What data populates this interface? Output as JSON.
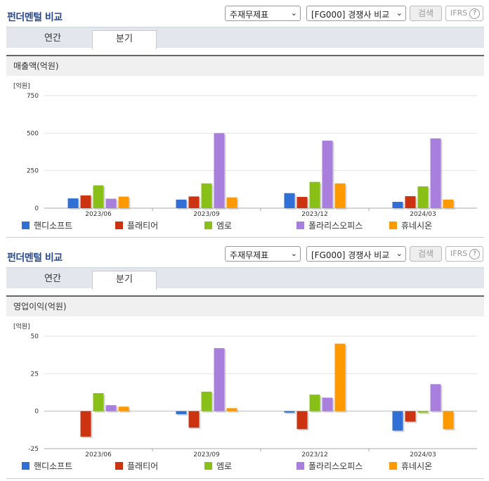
{
  "sections": [
    {
      "title": "펀더멘털 비교",
      "select1": "주재무제표",
      "select2": "[FG000] 경쟁사 비교",
      "search_label": "검색",
      "ifrs_label": "IFRS",
      "help_glyph": "?",
      "tabs": [
        {
          "label": "연간"
        },
        {
          "label": "분기"
        }
      ],
      "active_tab": "분기",
      "subtitle": "매출액(억원)"
    },
    {
      "title": "펀더멘털 비교",
      "select1": "주재무제표",
      "select2": "[FG000] 경쟁사 비교",
      "search_label": "검색",
      "ifrs_label": "IFRS",
      "help_glyph": "?",
      "tabs": [
        {
          "label": "연간"
        },
        {
          "label": "분기"
        }
      ],
      "active_tab": "분기",
      "subtitle": "영업이익(억원)"
    }
  ],
  "chart_data": [
    {
      "type": "bar",
      "unit_label": "[억원]",
      "categories": [
        "2023/06",
        "2023/09",
        "2023/12",
        "2024/03"
      ],
      "yticks": [
        0,
        250,
        500,
        750
      ],
      "ylim": [
        0,
        750
      ],
      "series": [
        {
          "name": "핸디소프트",
          "color": "#2f6fd6",
          "values": [
            65,
            57,
            100,
            42
          ]
        },
        {
          "name": "플래티어",
          "color": "#cc3311",
          "values": [
            85,
            78,
            75,
            80
          ]
        },
        {
          "name": "엠로",
          "color": "#88c017",
          "values": [
            152,
            165,
            175,
            145
          ]
        },
        {
          "name": "폴라리스오피스",
          "color": "#a87fdc",
          "values": [
            63,
            500,
            450,
            465
          ]
        },
        {
          "name": "휴네시온",
          "color": "#ff9900",
          "values": [
            77,
            72,
            165,
            57
          ]
        }
      ]
    },
    {
      "type": "bar",
      "unit_label": "[억원]",
      "categories": [
        "2023/06",
        "2023/09",
        "2023/12",
        "2024/03"
      ],
      "yticks": [
        -25,
        0,
        25,
        50
      ],
      "ylim": [
        -25,
        50
      ],
      "series": [
        {
          "name": "핸디소프트",
          "color": "#2f6fd6",
          "values": [
            0,
            -2,
            -1,
            -13
          ]
        },
        {
          "name": "플래티어",
          "color": "#cc3311",
          "values": [
            -17,
            -11,
            -12,
            -7
          ]
        },
        {
          "name": "엠로",
          "color": "#88c017",
          "values": [
            12,
            13,
            11,
            -1
          ]
        },
        {
          "name": "폴라리스오피스",
          "color": "#a87fdc",
          "values": [
            4,
            42,
            9,
            18
          ]
        },
        {
          "name": "휴네시온",
          "color": "#ff9900",
          "values": [
            3,
            2,
            45,
            -12
          ]
        }
      ]
    }
  ]
}
